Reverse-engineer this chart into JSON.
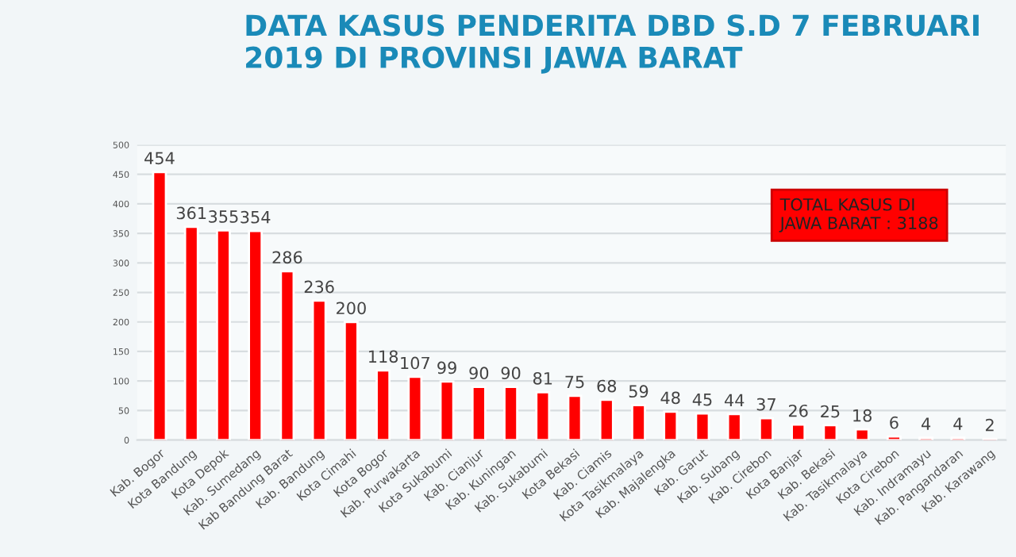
{
  "chart_data": {
    "type": "bar",
    "title": "DATA KASUS PENDERITA DBD S.D 7 FEBRUARI\n2019 DI PROVINSI JAWA BARAT",
    "categories": [
      "Kab. Bogor",
      "Kota Bandung",
      "Kota Depok",
      "Kab. Sumedang",
      "Kab Bandung Barat",
      "Kab. Bandung",
      "Kota Cimahi",
      "Kota Bogor",
      "Kab. Purwakarta",
      "Kota Sukabumi",
      "Kab. Cianjur",
      "Kab. Kuningan",
      "Kab. Sukabumi",
      "Kota Bekasi",
      "Kab. Ciamis",
      "Kota Tasikmalaya",
      "Kab. Majalengka",
      "Kab. Garut",
      "Kab. Subang",
      "Kab. Cirebon",
      "Kota Banjar",
      "Kab. Bekasi",
      "Kab. Tasikmalaya",
      "Kota Cirebon",
      "Kab. Indramayu",
      "Kab. Pangandaran",
      "Kab. Karawang"
    ],
    "values": [
      454,
      361,
      355,
      354,
      286,
      236,
      200,
      118,
      107,
      99,
      90,
      90,
      81,
      75,
      68,
      59,
      48,
      45,
      44,
      37,
      26,
      25,
      18,
      6,
      4,
      4,
      2
    ],
    "color": "#ff0000",
    "ylim": [
      0,
      500
    ],
    "yticks": [
      0,
      50,
      100,
      150,
      200,
      250,
      300,
      350,
      400,
      450,
      500
    ],
    "grid": "y",
    "data_labels": true,
    "annotations": [
      "TOTAL KASUS DI\nJAWA BARAT : 3188"
    ]
  }
}
